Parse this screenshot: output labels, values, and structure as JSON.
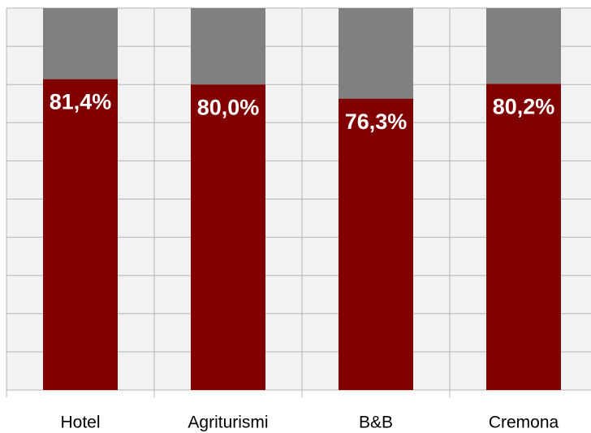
{
  "chart_data": {
    "type": "stacked_bar",
    "categories": [
      "Hotel",
      "Agriturismi",
      "B&B",
      "Cremona"
    ],
    "series": [
      {
        "color": "#800000",
        "values": [
          81.4,
          80.0,
          76.3,
          80.2
        ],
        "value_labels": [
          "81,4%",
          "80,0%",
          "76,3%",
          "80,2%"
        ]
      },
      {
        "color": "#808080",
        "values": [
          18.6,
          20.0,
          23.7,
          19.8
        ]
      }
    ],
    "ylim": [
      0,
      100
    ],
    "yticks": [
      0,
      10,
      20,
      30,
      40,
      50,
      60,
      70,
      80,
      90,
      100
    ],
    "grid": true
  }
}
